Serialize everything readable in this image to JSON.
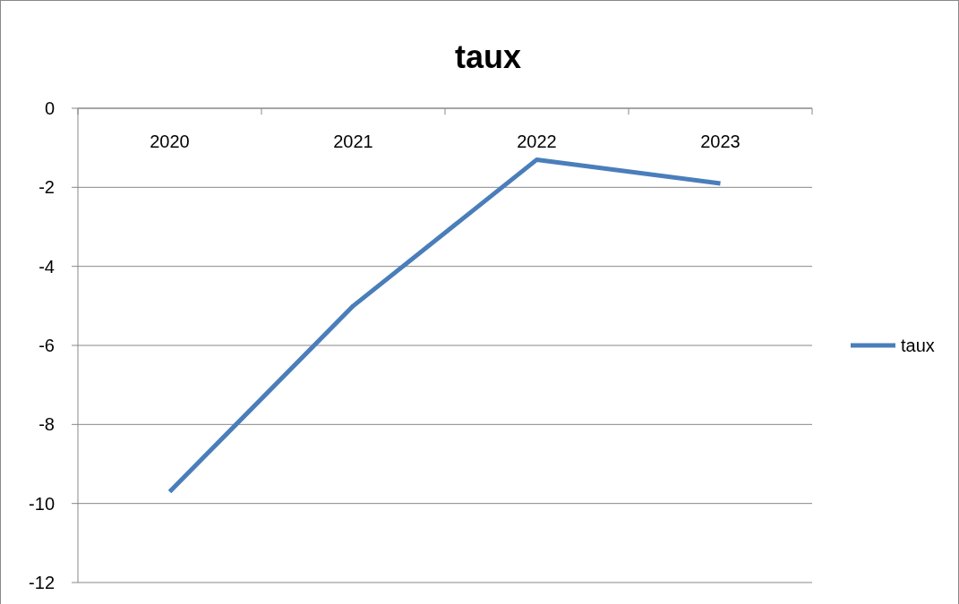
{
  "chart_data": {
    "type": "line",
    "title": "taux",
    "categories": [
      "2020",
      "2021",
      "2022",
      "2023"
    ],
    "series": [
      {
        "name": "taux",
        "color": "#4a7ebb",
        "values": [
          -9.7,
          -5.0,
          -1.3,
          -1.9
        ]
      }
    ],
    "ylim": [
      -12,
      0
    ],
    "yticks": [
      -12,
      -10,
      -8,
      -6,
      -4,
      -2,
      0
    ],
    "grid": "y",
    "legend": "right"
  }
}
